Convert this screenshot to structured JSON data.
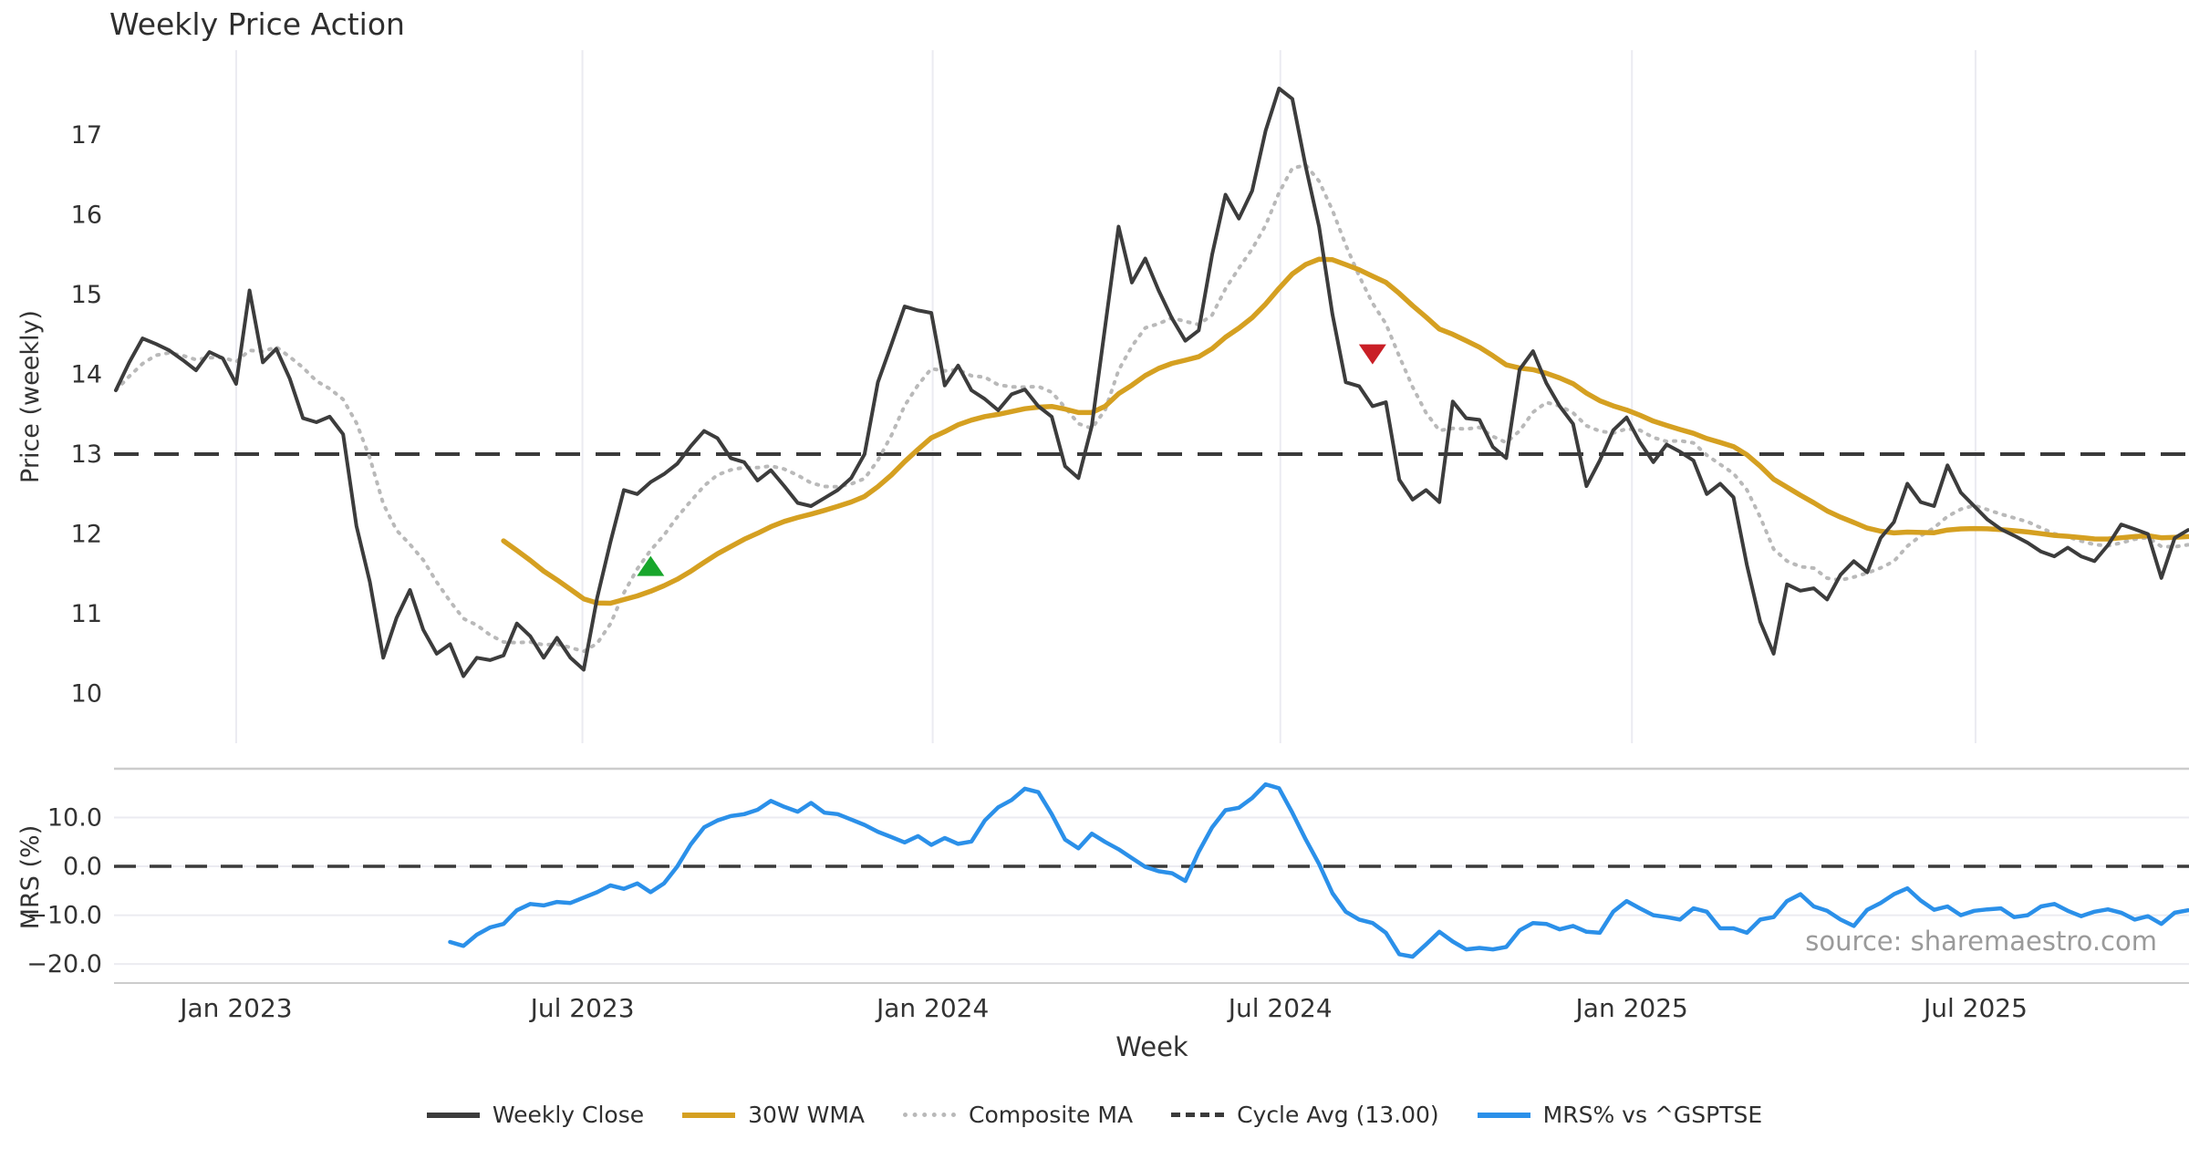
{
  "title": "Weekly Price Action",
  "watermark": "source: sharemaestro.com",
  "xlabel": "Week",
  "colors": {
    "close": "#3c3c3c",
    "wma": "#d5a021",
    "composite": "#b9b9b9",
    "cycle_avg": "#3a3a3a",
    "mrs": "#2b90e9",
    "buy_marker": "#18a62c",
    "sell_marker": "#c91f26",
    "grid": "#ebebf1",
    "spine": "#cccccc",
    "tick_text": "#333333",
    "watermark_text": "#9a9a9a",
    "title_text": "#2f2f2f"
  },
  "legend": [
    {
      "label": "Weekly Close",
      "style": "solid",
      "color": "#3c3c3c"
    },
    {
      "label": "30W WMA",
      "style": "solid",
      "color": "#d5a021"
    },
    {
      "label": "Composite MA",
      "style": "dotted",
      "color": "#b9b9b9"
    },
    {
      "label": "Cycle Avg (13.00)",
      "style": "dashed",
      "color": "#3a3a3a"
    },
    {
      "label": "MRS% vs ^GSPTSE",
      "style": "solid",
      "color": "#2b90e9"
    }
  ],
  "price_panel": {
    "ylabel": "Price (weekly)",
    "ylim": [
      9.38,
      18.06
    ],
    "yticks": [
      {
        "v": 17,
        "label": "17"
      },
      {
        "v": 16,
        "label": "16"
      },
      {
        "v": 15,
        "label": "15"
      },
      {
        "v": 14,
        "label": "14"
      },
      {
        "v": 13,
        "label": "13"
      },
      {
        "v": 12,
        "label": "12"
      },
      {
        "v": 11,
        "label": "11"
      },
      {
        "v": 10,
        "label": "10"
      }
    ],
    "cycle_avg_value": 13.0
  },
  "mrs_panel": {
    "ylabel": "MRS (%)",
    "ylim": [
      -23.9,
      20.0
    ],
    "yticks": [
      {
        "v": 10,
        "label": "10.0"
      },
      {
        "v": 0,
        "label": "0.0"
      },
      {
        "v": -10,
        "label": "−10.0"
      },
      {
        "v": -20,
        "label": "−20.0"
      }
    ],
    "zero_line": 0.0
  },
  "chart_data": [
    {
      "type": "line",
      "panel": "price",
      "title": "Weekly Price Action",
      "x_unit": "week_index",
      "start_date": "2022-10-31",
      "freq": "W",
      "x_ticks": [
        {
          "week": 9.0,
          "label": "Jan 2023"
        },
        {
          "week": 34.9,
          "label": "Jul 2023"
        },
        {
          "week": 61.1,
          "label": "Jan 2024"
        },
        {
          "week": 87.1,
          "label": "Jul 2024"
        },
        {
          "week": 113.4,
          "label": "Jan 2025"
        },
        {
          "week": 139.1,
          "label": "Jul 2025"
        }
      ],
      "series": [
        {
          "name": "Weekly Close",
          "values": [
            13.8,
            14.15,
            14.45,
            14.38,
            14.3,
            14.18,
            14.05,
            14.28,
            14.2,
            13.88,
            15.05,
            14.15,
            14.32,
            13.95,
            13.45,
            13.4,
            13.47,
            13.25,
            12.1,
            11.4,
            10.45,
            10.95,
            11.3,
            10.8,
            10.5,
            10.62,
            10.22,
            10.45,
            10.42,
            10.48,
            10.88,
            10.72,
            10.45,
            10.7,
            10.45,
            10.3,
            11.2,
            11.9,
            12.55,
            12.5,
            12.65,
            12.75,
            12.88,
            13.1,
            13.29,
            13.2,
            12.95,
            12.9,
            12.67,
            12.8,
            12.6,
            12.39,
            12.35,
            12.45,
            12.55,
            12.7,
            13.0,
            13.9,
            14.37,
            14.85,
            14.8,
            14.77,
            13.86,
            14.11,
            13.8,
            13.69,
            13.55,
            13.75,
            13.81,
            13.6,
            13.47,
            12.85,
            12.7,
            13.35,
            14.6,
            15.85,
            15.15,
            15.45,
            15.05,
            14.7,
            14.42,
            14.55,
            15.5,
            16.25,
            15.95,
            16.3,
            17.05,
            17.58,
            17.45,
            16.6,
            15.85,
            14.75,
            13.9,
            13.85,
            13.6,
            13.65,
            12.68,
            12.43,
            12.55,
            12.4,
            13.66,
            13.45,
            13.43,
            13.09,
            12.95,
            14.06,
            14.29,
            13.89,
            13.6,
            13.38,
            12.6,
            12.92,
            13.3,
            13.46,
            13.15,
            12.9,
            13.12,
            13.03,
            12.92,
            12.5,
            12.63,
            12.46,
            11.61,
            10.9,
            10.5,
            11.37,
            11.29,
            11.32,
            11.18,
            11.49,
            11.66,
            11.52,
            11.95,
            12.15,
            12.63,
            12.4,
            12.35,
            12.86,
            12.52,
            12.35,
            12.18,
            12.06,
            11.98,
            11.89,
            11.78,
            11.72,
            11.83,
            11.72,
            11.66,
            11.86,
            12.12,
            12.06,
            12.0,
            11.45,
            11.95,
            12.05
          ]
        },
        {
          "name": "30W WMA",
          "derived_from": "Weekly Close",
          "method": "weighted_ma",
          "window": 30
        },
        {
          "name": "Composite MA",
          "derived_from": "Weekly Close",
          "method": "mean_of_smas",
          "windows": [
            3,
            7,
            13
          ]
        },
        {
          "name": "Cycle Avg (13.00)",
          "method": "constant",
          "value": 13.0
        }
      ],
      "markers": [
        {
          "name": "buy-signal",
          "shape": "triangle-up",
          "color": "#18a62c",
          "week": 40,
          "value": 11.6
        },
        {
          "name": "sell-signal",
          "shape": "triangle-down",
          "color": "#c91f26",
          "week": 94,
          "value": 14.25
        }
      ]
    },
    {
      "type": "line",
      "panel": "mrs",
      "series": [
        {
          "name": "MRS% vs ^GSPTSE",
          "values": [
            null,
            null,
            null,
            null,
            null,
            null,
            null,
            null,
            null,
            null,
            null,
            null,
            null,
            null,
            null,
            null,
            null,
            null,
            null,
            null,
            null,
            null,
            null,
            null,
            null,
            -15.5,
            -16.3,
            -14.0,
            -12.5,
            -11.8,
            -9.0,
            -7.7,
            -8.0,
            -7.3,
            -7.5,
            -6.4,
            -5.3,
            -3.9,
            -4.6,
            -3.5,
            -5.3,
            -3.5,
            0.0,
            4.5,
            8.0,
            9.4,
            10.3,
            10.7,
            11.6,
            13.4,
            12.2,
            11.2,
            13.0,
            11.0,
            10.7,
            9.6,
            8.5,
            7.1,
            6.0,
            4.9,
            6.2,
            4.4,
            5.8,
            4.6,
            5.1,
            9.4,
            12.1,
            13.6,
            15.9,
            15.2,
            10.7,
            5.5,
            3.7,
            6.7,
            5.0,
            3.5,
            1.7,
            -0.1,
            -1.0,
            -1.4,
            -3.0,
            3.0,
            8.0,
            11.5,
            12.0,
            14.0,
            16.8,
            16.0,
            11.0,
            5.5,
            0.5,
            -5.5,
            -9.3,
            -10.9,
            -11.6,
            -13.6,
            -18.0,
            -18.5,
            -16.0,
            -13.4,
            -15.4,
            -17.0,
            -16.7,
            -17.0,
            -16.5,
            -13.1,
            -11.6,
            -11.8,
            -12.9,
            -12.2,
            -13.4,
            -13.6,
            -9.3,
            -7.1,
            -8.6,
            -10.0,
            -10.4,
            -10.9,
            -8.6,
            -9.3,
            -12.7,
            -12.7,
            -13.6,
            -10.9,
            -10.4,
            -7.1,
            -5.7,
            -8.2,
            -9.1,
            -10.9,
            -12.2,
            -8.9,
            -7.5,
            -5.7,
            -4.5,
            -7.0,
            -8.9,
            -8.2,
            -10.0,
            -9.1,
            -8.8,
            -8.6,
            -10.4,
            -10.0,
            -8.2,
            -7.7,
            -9.1,
            -10.2,
            -9.3,
            -8.8,
            -9.5,
            -10.9,
            -10.2,
            -11.8,
            -9.5,
            -9.0
          ]
        },
        {
          "name": "Zero line",
          "method": "constant",
          "value": 0.0
        }
      ]
    }
  ]
}
